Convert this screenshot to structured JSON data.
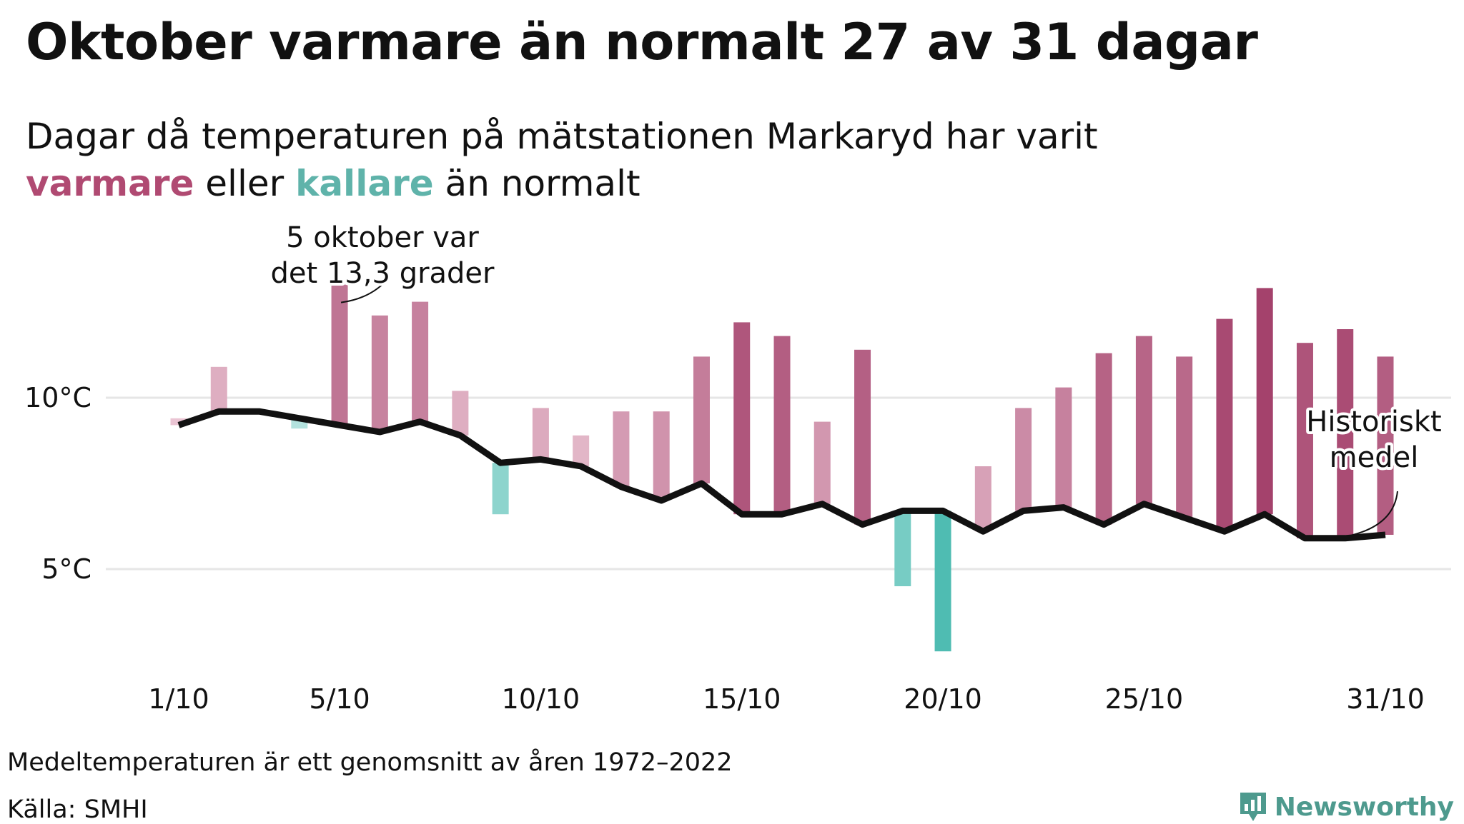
{
  "title": "Oktober varmare än normalt 27 av 31 dagar",
  "subtitle": {
    "line1": "Dagar då temperaturen på mätstationen Markaryd har varit",
    "warm_word": "varmare",
    "middle": " eller ",
    "cold_word": "kallare",
    "end": " än normalt"
  },
  "colors": {
    "warm_dark": "#a3406a",
    "warm_light": "#ecc8d6",
    "cold_dark": "#4fbcb2",
    "cold_light": "#bce6e2",
    "mean_line": "#111111",
    "grid": "#e6e6e6"
  },
  "chart_data": {
    "type": "bar",
    "x_tick_labels": [
      "1/10",
      "5/10",
      "10/10",
      "15/10",
      "20/10",
      "25/10",
      "31/10"
    ],
    "x_tick_days": [
      1,
      5,
      10,
      15,
      20,
      25,
      31
    ],
    "y_tick_labels": [
      "10°C",
      "5°C"
    ],
    "y_ticks": [
      10,
      5
    ],
    "ylim": [
      2.3,
      14.6
    ],
    "days": [
      1,
      2,
      3,
      4,
      5,
      6,
      7,
      8,
      9,
      10,
      11,
      12,
      13,
      14,
      15,
      16,
      17,
      18,
      19,
      20,
      21,
      22,
      23,
      24,
      25,
      26,
      27,
      28,
      29,
      30,
      31
    ],
    "series": [
      {
        "values": [
          9.4,
          10.9,
          9.6,
          9.1,
          13.3,
          12.4,
          12.8,
          10.2,
          6.6,
          9.7,
          8.9,
          9.6,
          9.6,
          11.2,
          12.2,
          11.8,
          9.3,
          11.4,
          4.5,
          2.6,
          8.0,
          9.7,
          10.3,
          11.3,
          11.8,
          11.2,
          12.3,
          13.2,
          11.6,
          12.0,
          11.2
        ]
      },
      {
        "values": [
          9.2,
          9.6,
          9.6,
          9.4,
          9.2,
          9.0,
          9.3,
          8.9,
          8.1,
          8.2,
          8.0,
          7.4,
          7.0,
          7.5,
          6.6,
          6.6,
          6.9,
          6.3,
          6.7,
          6.7,
          6.1,
          6.7,
          6.8,
          6.3,
          6.9,
          6.5,
          6.1,
          6.6,
          5.9,
          5.9,
          6.0
        ]
      }
    ],
    "annotations": [
      {
        "text_lines": [
          "5 oktober var",
          "det 13,3 grader"
        ],
        "day": 5,
        "value": 13.3
      },
      {
        "text_lines": [
          "Historiskt",
          "medel"
        ],
        "day": 30,
        "value": 5.9
      }
    ]
  },
  "footnotes": {
    "note": "Medeltemperaturen är ett genomsnitt av åren 1972–2022",
    "source": "Källa: SMHI"
  },
  "brand": {
    "name": "Newsworthy",
    "icon": "newsworthy-logo-icon"
  }
}
